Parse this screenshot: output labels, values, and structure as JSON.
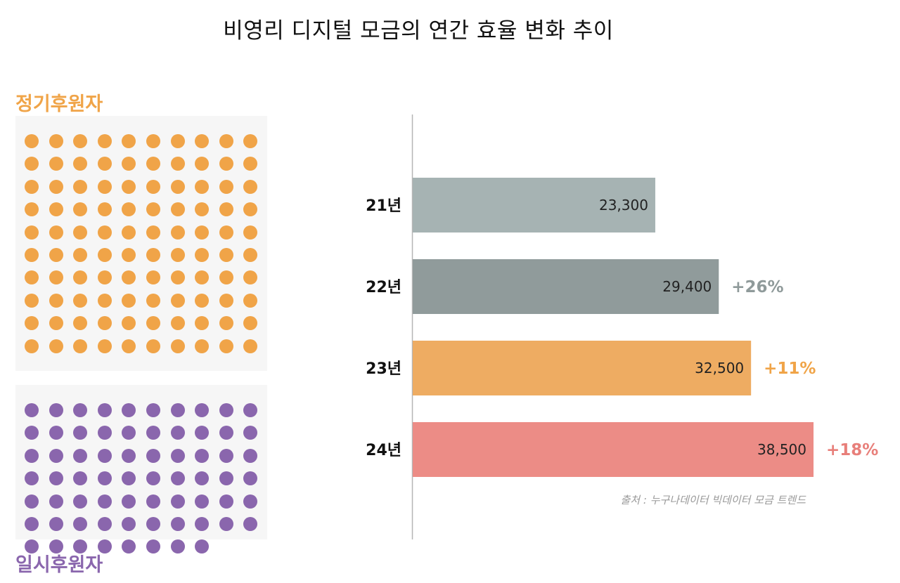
{
  "title": "비영리 디지털 모금의 연간 효율 변화 추이",
  "colors": {
    "regular": "#f0a448",
    "temporary": "#8a66ad",
    "axis": "#b5b5b5",
    "panel_bg": "#f6f6f6"
  },
  "donors": {
    "regular": {
      "label": "정기후원자",
      "dot_count": 100
    },
    "temporary": {
      "label": "일시후원자",
      "dot_count": 68
    }
  },
  "chart_data": {
    "type": "bar",
    "orientation": "horizontal",
    "categories": [
      "21년",
      "22년",
      "23년",
      "24년"
    ],
    "values": [
      23300,
      29400,
      32500,
      38500
    ],
    "value_labels": [
      "23,300",
      "29,400",
      "32,500",
      "38,500"
    ],
    "changes": [
      "",
      "+26%",
      "+11%",
      "+18%"
    ],
    "bar_colors": [
      "#a6b3b3",
      "#909b9b",
      "#eeac62",
      "#ec8c86"
    ],
    "change_colors": [
      "#8f9a9a",
      "#8f9a9a",
      "#f0a448",
      "#e87f7a"
    ],
    "xlim": [
      0,
      38500
    ],
    "source": "출처 : 누구나데이터 빅데이터 모금 트렌드"
  }
}
